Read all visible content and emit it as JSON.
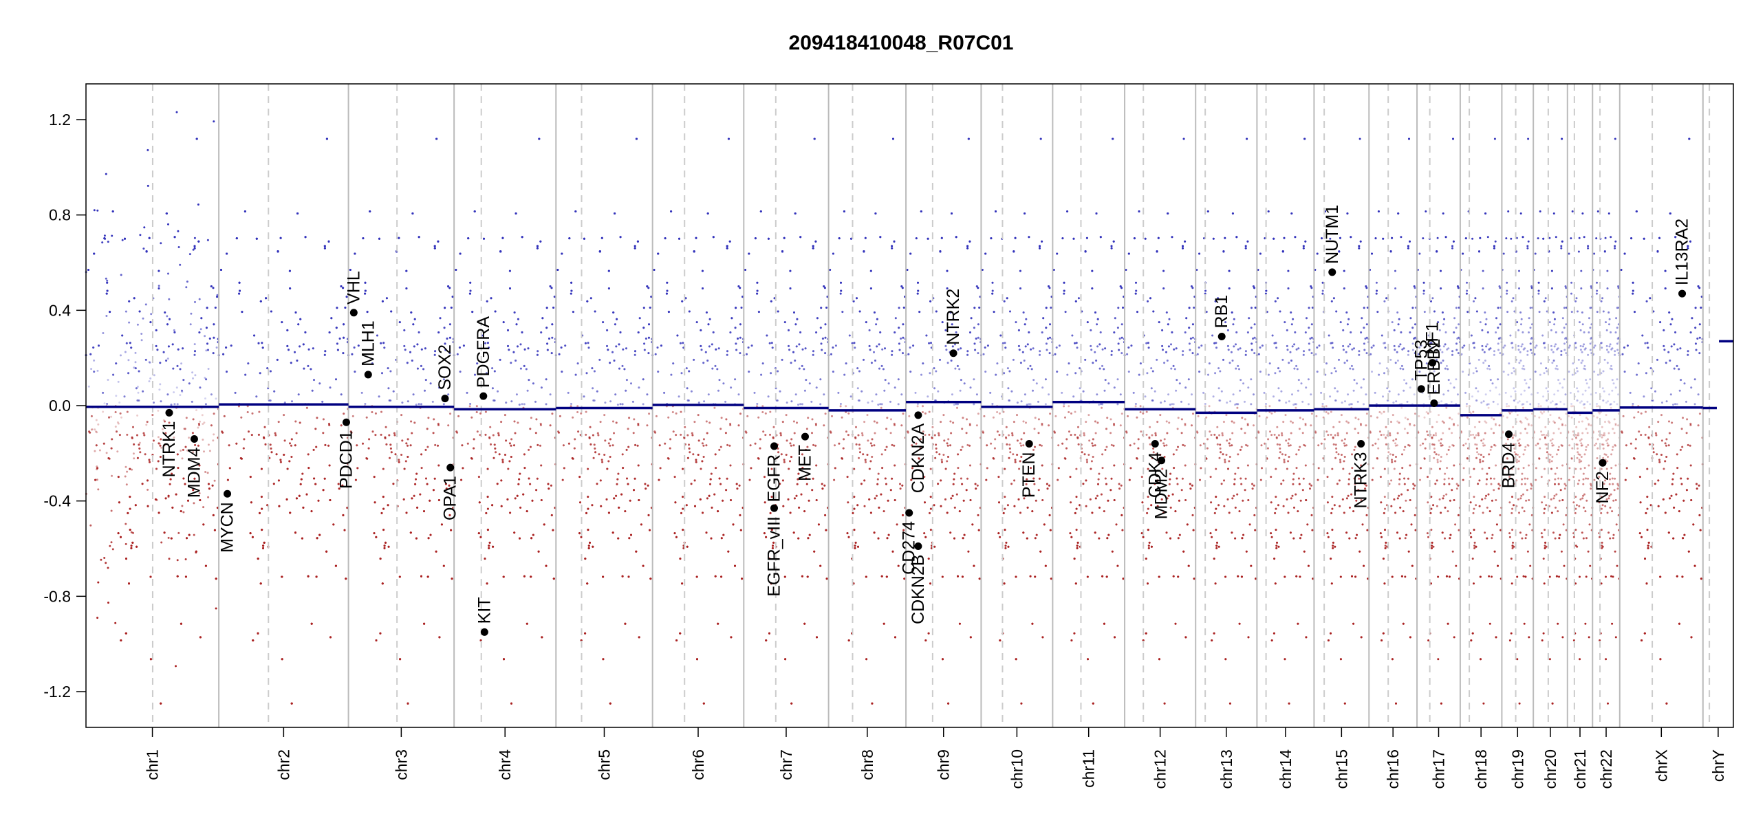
{
  "chart_data": {
    "type": "scatter",
    "title": "209418410048_R07C01",
    "xlabel": "",
    "ylabel": "",
    "ylim": [
      -1.35,
      1.35
    ],
    "yticks": [
      -1.2,
      -0.8,
      -0.4,
      0.0,
      0.4,
      0.8,
      1.2
    ],
    "ytick_labels": [
      "-1.2",
      "-0.8",
      "-0.4",
      "0.0",
      "0.4",
      "0.8",
      "1.2"
    ],
    "grid": false,
    "colors": {
      "gain": "#3333bb",
      "loss": "#aa2222",
      "segment": "#000080",
      "boundary": "#bbbbbb",
      "centromere": "#cccccc"
    },
    "chromosomes": [
      {
        "name": "chr1",
        "start": 0,
        "end": 249,
        "centromere": 125,
        "segments": [
          {
            "start": 0,
            "end": 249,
            "value": -0.005
          }
        ]
      },
      {
        "name": "chr2",
        "start": 249,
        "end": 492,
        "centromere": 342,
        "segments": [
          {
            "start": 249,
            "end": 492,
            "value": 0.005
          }
        ]
      },
      {
        "name": "chr3",
        "start": 492,
        "end": 690,
        "centromere": 583,
        "segments": [
          {
            "start": 492,
            "end": 690,
            "value": -0.005
          }
        ]
      },
      {
        "name": "chr4",
        "start": 690,
        "end": 881,
        "centromere": 741,
        "segments": [
          {
            "start": 690,
            "end": 881,
            "value": -0.015
          }
        ]
      },
      {
        "name": "chr5",
        "start": 881,
        "end": 1062,
        "centromere": 929,
        "segments": [
          {
            "start": 881,
            "end": 1062,
            "value": -0.01
          }
        ]
      },
      {
        "name": "chr6",
        "start": 1062,
        "end": 1233,
        "centromere": 1122,
        "segments": [
          {
            "start": 1062,
            "end": 1233,
            "value": 0.003
          }
        ]
      },
      {
        "name": "chr7",
        "start": 1233,
        "end": 1392,
        "centromere": 1293,
        "segments": [
          {
            "start": 1233,
            "end": 1392,
            "value": -0.01
          }
        ]
      },
      {
        "name": "chr8",
        "start": 1392,
        "end": 1537,
        "centromere": 1437,
        "segments": [
          {
            "start": 1392,
            "end": 1537,
            "value": -0.02
          }
        ]
      },
      {
        "name": "chr9",
        "start": 1537,
        "end": 1678,
        "centromere": 1587,
        "segments": [
          {
            "start": 1537,
            "end": 1678,
            "value": 0.015
          }
        ]
      },
      {
        "name": "chr10",
        "start": 1678,
        "end": 1812,
        "centromere": 1718,
        "segments": [
          {
            "start": 1678,
            "end": 1812,
            "value": -0.005
          }
        ]
      },
      {
        "name": "chr11",
        "start": 1812,
        "end": 1947,
        "centromere": 1865,
        "segments": [
          {
            "start": 1812,
            "end": 1947,
            "value": 0.015
          }
        ]
      },
      {
        "name": "chr12",
        "start": 1947,
        "end": 2080,
        "centromere": 1982,
        "segments": [
          {
            "start": 1947,
            "end": 2080,
            "value": -0.015
          }
        ]
      },
      {
        "name": "chr13",
        "start": 2080,
        "end": 2195,
        "centromere": 2098,
        "segments": [
          {
            "start": 2080,
            "end": 2195,
            "value": -0.03
          }
        ]
      },
      {
        "name": "chr14",
        "start": 2195,
        "end": 2302,
        "centromere": 2212,
        "segments": [
          {
            "start": 2195,
            "end": 2302,
            "value": -0.02
          }
        ]
      },
      {
        "name": "chr15",
        "start": 2302,
        "end": 2405,
        "centromere": 2321,
        "segments": [
          {
            "start": 2302,
            "end": 2405,
            "value": -0.015
          }
        ]
      },
      {
        "name": "chr16",
        "start": 2405,
        "end": 2495,
        "centromere": 2441,
        "segments": [
          {
            "start": 2405,
            "end": 2495,
            "value": 0.0
          }
        ]
      },
      {
        "name": "chr17",
        "start": 2495,
        "end": 2576,
        "centromere": 2519,
        "segments": [
          {
            "start": 2495,
            "end": 2576,
            "value": 0.0
          }
        ]
      },
      {
        "name": "chr18",
        "start": 2576,
        "end": 2654,
        "centromere": 2593,
        "segments": [
          {
            "start": 2576,
            "end": 2654,
            "value": -0.04
          }
        ]
      },
      {
        "name": "chr19",
        "start": 2654,
        "end": 2713,
        "centromere": 2680,
        "segments": [
          {
            "start": 2654,
            "end": 2713,
            "value": -0.02
          }
        ]
      },
      {
        "name": "chr20",
        "start": 2713,
        "end": 2777,
        "centromere": 2741,
        "segments": [
          {
            "start": 2713,
            "end": 2777,
            "value": -0.015
          }
        ]
      },
      {
        "name": "chr21",
        "start": 2777,
        "end": 2824,
        "centromere": 2790,
        "segments": [
          {
            "start": 2777,
            "end": 2824,
            "value": -0.03
          }
        ]
      },
      {
        "name": "chr22",
        "start": 2824,
        "end": 2875,
        "centromere": 2838,
        "segments": [
          {
            "start": 2824,
            "end": 2875,
            "value": -0.02
          }
        ]
      },
      {
        "name": "chrX",
        "start": 2875,
        "end": 3031,
        "centromere": 2936,
        "segments": [
          {
            "start": 2875,
            "end": 3031,
            "value": -0.008
          }
        ]
      },
      {
        "name": "chrY",
        "start": 3031,
        "end": 3088,
        "centromere": 3043,
        "segments": [
          {
            "start": 3031,
            "end": 3057,
            "value": -0.01
          },
          {
            "start": 3061,
            "end": 3088,
            "value": 0.27
          }
        ]
      }
    ],
    "genes": [
      {
        "name": "NTRK1",
        "x": 156,
        "y": -0.03,
        "label": "below"
      },
      {
        "name": "MDM4",
        "x": 203,
        "y": -0.14,
        "label": "below"
      },
      {
        "name": "MYCN",
        "x": 265,
        "y": -0.37,
        "label": "below"
      },
      {
        "name": "PDCD1",
        "x": 488,
        "y": -0.07,
        "label": "below"
      },
      {
        "name": "VHL",
        "x": 502,
        "y": 0.39,
        "label": "above"
      },
      {
        "name": "MLH1",
        "x": 529,
        "y": 0.13,
        "label": "above"
      },
      {
        "name": "SOX2",
        "x": 673,
        "y": 0.03,
        "label": "above"
      },
      {
        "name": "OPA1",
        "x": 683,
        "y": -0.26,
        "label": "below"
      },
      {
        "name": "PDGFRA",
        "x": 745,
        "y": 0.04,
        "label": "above"
      },
      {
        "name": "KIT",
        "x": 747,
        "y": -0.95,
        "label": "above"
      },
      {
        "name": "EGFR",
        "x": 1290,
        "y": -0.17,
        "label": "below"
      },
      {
        "name": "EGFR_vIII",
        "x": 1290,
        "y": -0.43,
        "label": "below"
      },
      {
        "name": "MET",
        "x": 1348,
        "y": -0.13,
        "label": "below"
      },
      {
        "name": "CD274",
        "x": 1543,
        "y": -0.45,
        "label": "below"
      },
      {
        "name": "CDKN2B",
        "x": 1560,
        "y": -0.59,
        "label": "below"
      },
      {
        "name": "CDKN2A",
        "x": 1560,
        "y": -0.04,
        "label": "below"
      },
      {
        "name": "NTRK2",
        "x": 1626,
        "y": 0.22,
        "label": "above"
      },
      {
        "name": "PTEN",
        "x": 1768,
        "y": -0.16,
        "label": "below"
      },
      {
        "name": "CDK4",
        "x": 2004,
        "y": -0.16,
        "label": "below"
      },
      {
        "name": "MDM2",
        "x": 2016,
        "y": -0.23,
        "label": "below"
      },
      {
        "name": "RB1",
        "x": 2129,
        "y": 0.29,
        "label": "above"
      },
      {
        "name": "NUTM1",
        "x": 2336,
        "y": 0.56,
        "label": "above"
      },
      {
        "name": "NTRK3",
        "x": 2390,
        "y": -0.16,
        "label": "below"
      },
      {
        "name": "TP53",
        "x": 2503,
        "y": 0.07,
        "label": "above"
      },
      {
        "name": "NF1",
        "x": 2524,
        "y": 0.18,
        "label": "above"
      },
      {
        "name": "ERBB2",
        "x": 2527,
        "y": 0.01,
        "label": "above"
      },
      {
        "name": "BRD4",
        "x": 2667,
        "y": -0.12,
        "label": "below"
      },
      {
        "name": "NF2",
        "x": 2843,
        "y": -0.24,
        "label": "below"
      },
      {
        "name": "IL13RA2",
        "x": 2992,
        "y": 0.47,
        "label": "above"
      }
    ]
  }
}
